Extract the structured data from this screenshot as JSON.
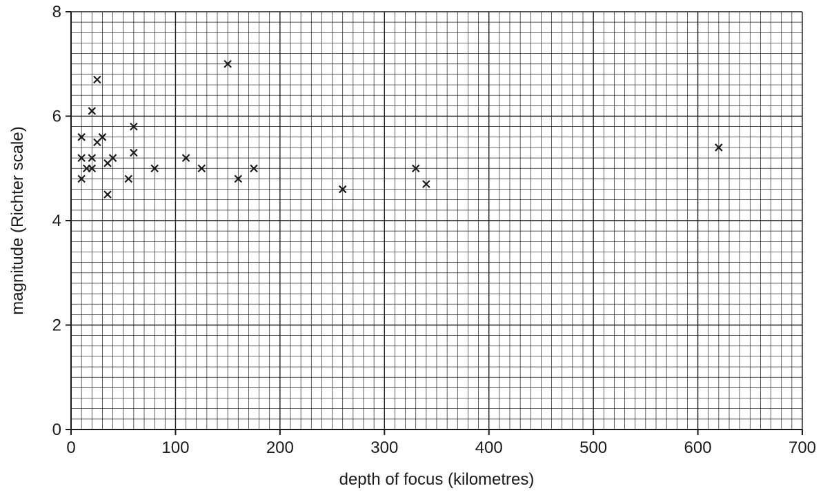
{
  "chart_data": {
    "type": "scatter",
    "title": "",
    "xlabel": "depth of focus (kilometres)",
    "ylabel": "magnitude (Richter scale)",
    "xlim": [
      0,
      700
    ],
    "ylim": [
      0,
      8
    ],
    "x_ticks": [
      "0",
      "100",
      "200",
      "300",
      "400",
      "500",
      "600",
      "700"
    ],
    "y_ticks": [
      "0",
      "2",
      "4",
      "6",
      "8"
    ],
    "grid": true,
    "marker": "x",
    "colors": {
      "ink": "#1a1a1a",
      "grid": "#1a1a1a",
      "background": "#ffffff"
    },
    "points": [
      {
        "x": 10,
        "y": 5.6
      },
      {
        "x": 10,
        "y": 5.2
      },
      {
        "x": 10,
        "y": 4.8
      },
      {
        "x": 15,
        "y": 5.0
      },
      {
        "x": 20,
        "y": 6.1
      },
      {
        "x": 20,
        "y": 5.2
      },
      {
        "x": 20,
        "y": 5.0
      },
      {
        "x": 25,
        "y": 6.7
      },
      {
        "x": 25,
        "y": 5.5
      },
      {
        "x": 30,
        "y": 5.6
      },
      {
        "x": 35,
        "y": 5.1
      },
      {
        "x": 35,
        "y": 4.5
      },
      {
        "x": 40,
        "y": 5.2
      },
      {
        "x": 55,
        "y": 4.8
      },
      {
        "x": 60,
        "y": 5.8
      },
      {
        "x": 60,
        "y": 5.3
      },
      {
        "x": 80,
        "y": 5.0
      },
      {
        "x": 110,
        "y": 5.2
      },
      {
        "x": 125,
        "y": 5.0
      },
      {
        "x": 150,
        "y": 7.0
      },
      {
        "x": 160,
        "y": 4.8
      },
      {
        "x": 175,
        "y": 5.0
      },
      {
        "x": 260,
        "y": 4.6
      },
      {
        "x": 330,
        "y": 5.0
      },
      {
        "x": 340,
        "y": 4.7
      },
      {
        "x": 620,
        "y": 5.4
      }
    ]
  }
}
